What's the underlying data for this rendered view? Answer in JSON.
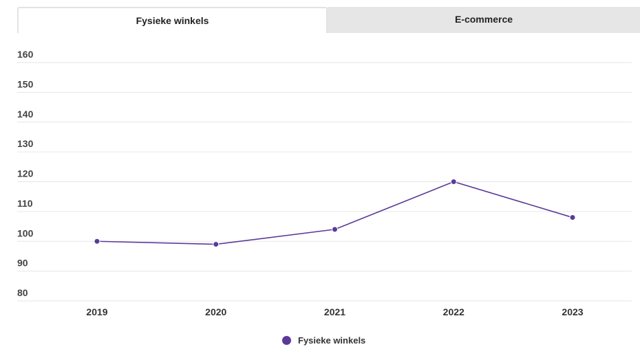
{
  "tabs": [
    {
      "label": "Fysieke winkels",
      "active": true
    },
    {
      "label": "E-commerce",
      "active": false
    }
  ],
  "colors": {
    "series": "#5b3a9a",
    "grid": "#e6e6e6",
    "tab_inactive": "#e6e6e6"
  },
  "legend": {
    "label": "Fysieke winkels",
    "icon": "circle-marker-icon"
  },
  "chart_data": {
    "type": "line",
    "categories": [
      "2019",
      "2020",
      "2021",
      "2022",
      "2023"
    ],
    "series": [
      {
        "name": "Fysieke winkels",
        "values": [
          100,
          99,
          104,
          120,
          108
        ]
      }
    ],
    "yticks": [
      80,
      90,
      100,
      110,
      120,
      130,
      140,
      150,
      160
    ],
    "ylim": [
      80,
      160
    ],
    "grid": true,
    "legend_position": "bottom-center"
  }
}
